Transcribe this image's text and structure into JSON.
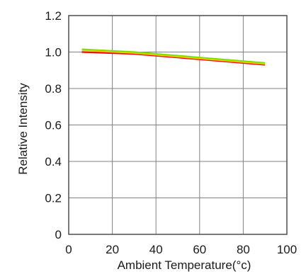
{
  "chart_data": {
    "type": "line",
    "title": "",
    "xlabel": "Ambient Temperature(°c)",
    "ylabel": "Relative Intensity",
    "xlim": [
      0,
      100
    ],
    "ylim": [
      0,
      1.2
    ],
    "x_ticks": [
      "0",
      "20",
      "40",
      "60",
      "80",
      "100"
    ],
    "y_ticks": [
      "0",
      "0.2",
      "0.4",
      "0.6",
      "0.8",
      "1.0",
      "1.2"
    ],
    "grid": true,
    "series": [
      {
        "color": "#ff0000",
        "x": [
          6,
          30,
          60,
          90
        ],
        "y": [
          1.0,
          0.99,
          0.96,
          0.93
        ]
      },
      {
        "color": "#ffd400",
        "x": [
          6,
          30,
          60,
          90
        ],
        "y": [
          1.01,
          0.995,
          0.965,
          0.935
        ]
      },
      {
        "color": "#7fe000",
        "x": [
          6,
          30,
          60,
          90
        ],
        "y": [
          1.015,
          1.0,
          0.97,
          0.94
        ]
      }
    ]
  }
}
